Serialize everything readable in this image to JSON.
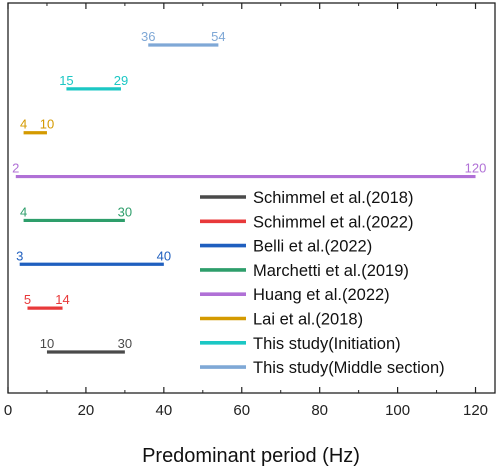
{
  "chart_data": {
    "type": "range",
    "xlabel": "Predominant period (Hz)",
    "xlim": [
      0,
      125
    ],
    "xticks": [
      0,
      20,
      40,
      60,
      80,
      100,
      120
    ],
    "grid": false,
    "legend_position": "lower-right",
    "series": [
      {
        "name": "Schimmel et al.(2018)",
        "color": "#4a4a4a",
        "min": 10,
        "max": 30,
        "min_label": "10",
        "max_label": "30"
      },
      {
        "name": "Schimmel et al.(2022)",
        "color": "#e8393a",
        "min": 5,
        "max": 14,
        "min_label": "5",
        "max_label": "14"
      },
      {
        "name": "Belli et al.(2022)",
        "color": "#1f5fbf",
        "min": 3,
        "max": 40,
        "min_label": "3",
        "max_label": "40"
      },
      {
        "name": "Marchetti et al.(2019)",
        "color": "#2e9e6b",
        "min": 4,
        "max": 30,
        "min_label": "4",
        "max_label": "30"
      },
      {
        "name": "Huang et al.(2022)",
        "color": "#b070d6",
        "min": 2,
        "max": 120,
        "min_label": "2",
        "max_label": "120"
      },
      {
        "name": "Lai et al.(2018)",
        "color": "#d49a00",
        "min": 4,
        "max": 10,
        "min_label": "4",
        "max_label": "10"
      },
      {
        "name": "This study(Initiation)",
        "color": "#1bc7c4",
        "min": 15,
        "max": 29,
        "min_label": "15",
        "max_label": "29"
      },
      {
        "name": "This study(Middle section)",
        "color": "#7fa8d6",
        "min": 36,
        "max": 54,
        "min_label": "36",
        "max_label": "54"
      }
    ]
  }
}
